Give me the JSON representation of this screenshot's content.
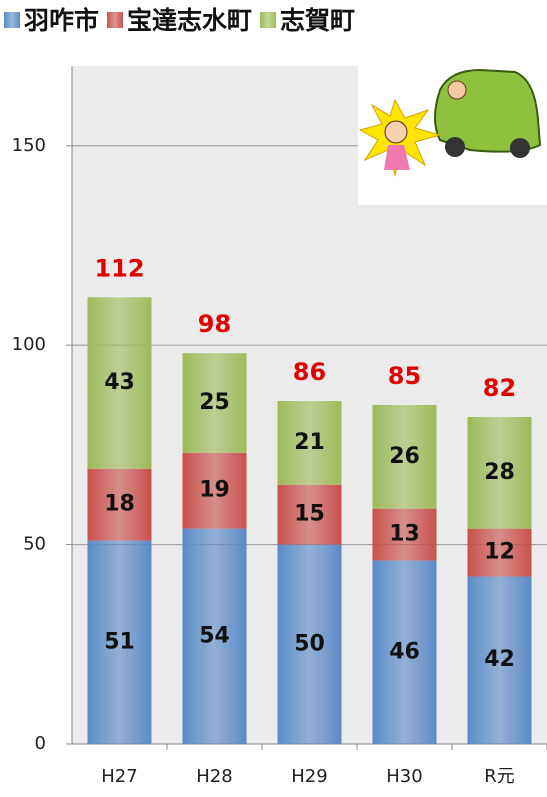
{
  "chart_data": {
    "type": "stacked_bar",
    "categories": [
      "H27",
      "H28",
      "H29",
      "H30",
      "R元"
    ],
    "series": [
      {
        "name": "羽咋市",
        "color": "#5b8ac6",
        "values": [
          51,
          54,
          50,
          46,
          42
        ]
      },
      {
        "name": "宝達志水町",
        "color": "#c9504d",
        "values": [
          18,
          19,
          15,
          13,
          12
        ]
      },
      {
        "name": "志賀町",
        "color": "#9dbb59",
        "values": [
          43,
          25,
          21,
          26,
          28
        ]
      }
    ],
    "totals": [
      112,
      98,
      86,
      85,
      82
    ],
    "totals_color": "#e00000",
    "ylim": [
      0,
      170
    ],
    "yticks": [
      0,
      50,
      100,
      150
    ],
    "grid": true,
    "legend": "top"
  }
}
